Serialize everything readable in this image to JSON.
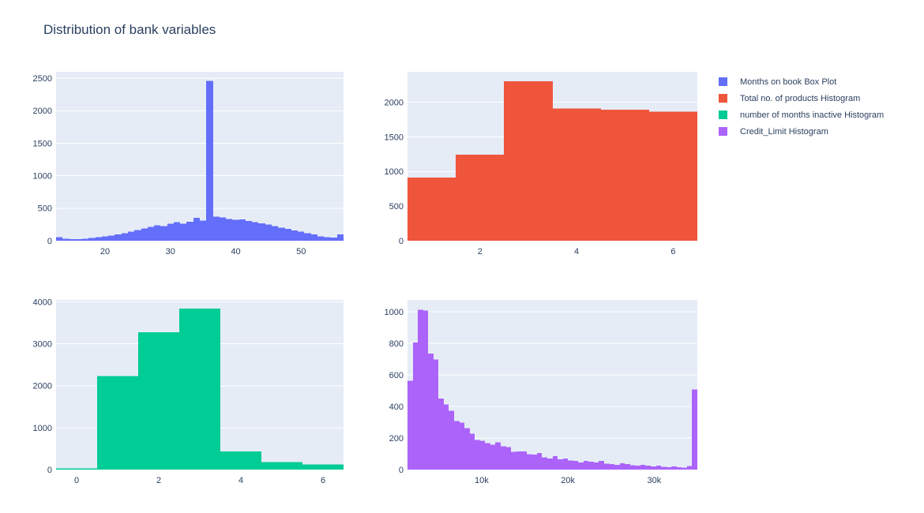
{
  "page": {
    "title": "Distribution of bank variables",
    "background": "#ffffff"
  },
  "theme": {
    "plot_bg": "#E5ECF6",
    "grid_color": "#FFFFFF",
    "text_color": "#2a3f5f",
    "series_colors": [
      "#636EFA",
      "#EF553B",
      "#00CC96",
      "#AB63FA"
    ]
  },
  "legend": {
    "position": "top-right",
    "items": [
      {
        "label": "Months on book Box Plot",
        "color": "#636EFA"
      },
      {
        "label": "Total no. of products Histogram",
        "color": "#EF553B"
      },
      {
        "label": "number of months inactive Histogram",
        "color": "#00CC96"
      },
      {
        "label": "Credit_Limit Histogram",
        "color": "#AB63FA"
      }
    ]
  },
  "chart_data": [
    {
      "type": "bar",
      "trace": "histogram",
      "name": "Months on book",
      "legend_label": "Months on book Box Plot",
      "color": "#636EFA",
      "grid": true,
      "bins": {
        "start": 12.5,
        "size": 1
      },
      "values": [
        55,
        28,
        22,
        25,
        32,
        42,
        55,
        68,
        82,
        98,
        118,
        140,
        162,
        188,
        212,
        238,
        225,
        262,
        285,
        262,
        292,
        350,
        308,
        2463,
        368,
        358,
        335,
        322,
        330,
        305,
        288,
        268,
        248,
        225,
        202,
        182,
        158,
        138,
        115,
        95,
        68,
        55,
        48,
        95
      ],
      "xlim": [
        12.5,
        56.5
      ],
      "ylim": [
        0,
        2600
      ],
      "xticks": [
        20,
        30,
        40,
        50
      ],
      "xtick_labels": [
        "20",
        "30",
        "40",
        "50"
      ],
      "yticks": [
        0,
        500,
        1000,
        1500,
        2000,
        2500
      ],
      "ytick_labels": [
        "0",
        "500",
        "1000",
        "1500",
        "2000",
        "2500"
      ],
      "xlabel": "",
      "ylabel": ""
    },
    {
      "type": "bar",
      "trace": "histogram",
      "name": "Total no. of products",
      "legend_label": "Total no. of products Histogram",
      "color": "#EF553B",
      "grid": true,
      "bins": {
        "start": 0.5,
        "size": 1
      },
      "values": [
        910,
        1243,
        2305,
        1912,
        1891,
        1866
      ],
      "xlim": [
        0.5,
        6.5
      ],
      "ylim": [
        0,
        2440
      ],
      "xticks": [
        2,
        4,
        6
      ],
      "xtick_labels": [
        "2",
        "4",
        "6"
      ],
      "yticks": [
        0,
        500,
        1000,
        1500,
        2000
      ],
      "ytick_labels": [
        "0",
        "500",
        "1000",
        "1500",
        "2000"
      ],
      "xlabel": "",
      "ylabel": ""
    },
    {
      "type": "bar",
      "trace": "histogram",
      "name": "number of months inactive",
      "legend_label": "number of months inactive Histogram",
      "color": "#00CC96",
      "grid": true,
      "bins": {
        "start": -0.5,
        "size": 1
      },
      "values": [
        29,
        2233,
        3282,
        3846,
        435,
        178,
        124
      ],
      "xlim": [
        -0.5,
        6.5
      ],
      "ylim": [
        0,
        4050
      ],
      "xticks": [
        0,
        2,
        4,
        6
      ],
      "xtick_labels": [
        "0",
        "2",
        "4",
        "6"
      ],
      "yticks": [
        0,
        1000,
        2000,
        3000,
        4000
      ],
      "ytick_labels": [
        "0",
        "1000",
        "2000",
        "3000",
        "4000"
      ],
      "xlabel": "",
      "ylabel": ""
    },
    {
      "type": "bar",
      "trace": "histogram",
      "name": "Credit_Limit",
      "legend_label": "Credit_Limit Histogram",
      "color": "#AB63FA",
      "grid": true,
      "bins": {
        "start": 1400,
        "size": 600
      },
      "values": [
        563,
        806,
        1013,
        1008,
        734,
        698,
        450,
        412,
        372,
        308,
        298,
        262,
        228,
        188,
        182,
        168,
        158,
        172,
        148,
        142,
        112,
        116,
        114,
        98,
        94,
        104,
        78,
        70,
        84,
        64,
        70,
        58,
        54,
        44,
        54,
        50,
        44,
        54,
        38,
        34,
        30,
        40,
        34,
        28,
        26,
        30,
        24,
        20,
        24,
        18,
        16,
        20,
        14,
        12,
        22,
        508
      ],
      "xlim": [
        1400,
        35000
      ],
      "ylim": [
        0,
        1075
      ],
      "xticks": [
        10000,
        20000,
        30000
      ],
      "xtick_labels": [
        "10k",
        "20k",
        "30k"
      ],
      "yticks": [
        0,
        200,
        400,
        600,
        800,
        1000
      ],
      "ytick_labels": [
        "0",
        "200",
        "400",
        "600",
        "800",
        "1000"
      ],
      "xlabel": "",
      "ylabel": ""
    }
  ]
}
